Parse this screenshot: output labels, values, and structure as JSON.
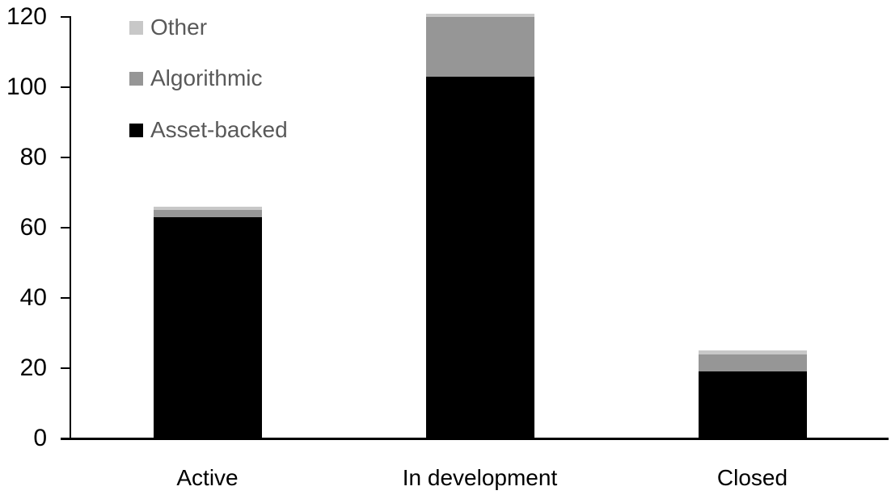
{
  "chart_data": {
    "type": "bar",
    "stacked": true,
    "title": "",
    "xlabel": "",
    "ylabel": "",
    "categories": [
      "Active",
      "In development",
      "Closed"
    ],
    "series": [
      {
        "name": "Asset-backed",
        "color": "#000000",
        "values": [
          63,
          103,
          19
        ]
      },
      {
        "name": "Algorithmic",
        "color": "#969696",
        "values": [
          2,
          17,
          5
        ]
      },
      {
        "name": "Other",
        "color": "#c8c8c8",
        "values": [
          1,
          1,
          1
        ]
      }
    ],
    "totals": [
      66,
      121,
      25
    ],
    "ylim": [
      0,
      120
    ],
    "yticks": [
      0,
      20,
      40,
      60,
      80,
      100,
      120
    ],
    "grid": false,
    "legend_position": "top-left-inside",
    "legend_items": [
      "Other",
      "Algorithmic",
      "Asset-backed"
    ],
    "colors": {
      "axis": "#000000",
      "tick_label_text": "#000000",
      "category_label_text": "#000000",
      "legend_text": "#595959",
      "background": "#ffffff"
    }
  }
}
